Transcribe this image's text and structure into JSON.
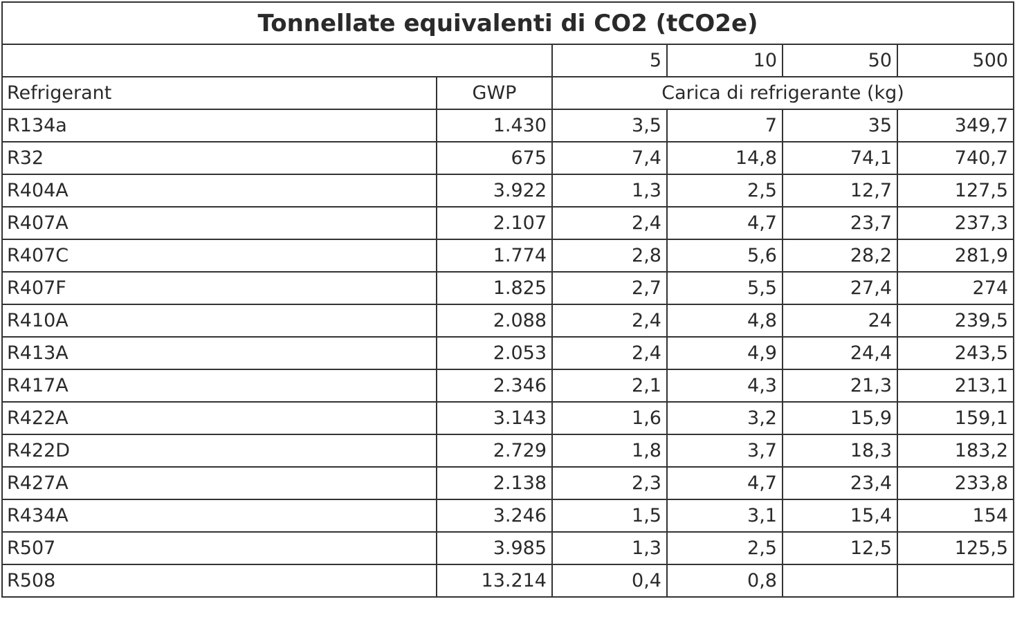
{
  "title": "Tonnellate equivalenti di CO2  (tCO2e)",
  "charges": [
    "5",
    "10",
    "50",
    "500"
  ],
  "header": {
    "refrigerant": "Refrigerant",
    "gwp": "GWP",
    "charge": "Carica di refrigerante (kg)"
  },
  "table": {
    "rows": [
      [
        "R134a",
        "1.430",
        "3,5",
        "7",
        "35",
        "349,7"
      ],
      [
        "R32",
        "675",
        "7,4",
        "14,8",
        "74,1",
        "740,7"
      ],
      [
        "R404A",
        "3.922",
        "1,3",
        "2,5",
        "12,7",
        "127,5"
      ],
      [
        "R407A",
        "2.107",
        "2,4",
        "4,7",
        "23,7",
        "237,3"
      ],
      [
        "R407C",
        "1.774",
        "2,8",
        "5,6",
        "28,2",
        "281,9"
      ],
      [
        "R407F",
        "1.825",
        "2,7",
        "5,5",
        "27,4",
        "274"
      ],
      [
        "R410A",
        "2.088",
        "2,4",
        "4,8",
        "24",
        "239,5"
      ],
      [
        "R413A",
        "2.053",
        "2,4",
        "4,9",
        "24,4",
        "243,5"
      ],
      [
        "R417A",
        "2.346",
        "2,1",
        "4,3",
        "21,3",
        "213,1"
      ],
      [
        "R422A",
        "3.143",
        "1,6",
        "3,2",
        "15,9",
        "159,1"
      ],
      [
        "R422D",
        "2.729",
        "1,8",
        "3,7",
        "18,3",
        "183,2"
      ],
      [
        "R427A",
        "2.138",
        "2,3",
        "4,7",
        "23,4",
        "233,8"
      ],
      [
        "R434A",
        "3.246",
        "1,5",
        "3,1",
        "15,4",
        "154"
      ],
      [
        "R507",
        "3.985",
        "1,3",
        "2,5",
        "12,5",
        "125,5"
      ],
      [
        "R508",
        "13.214",
        "0,4",
        "0,8",
        null,
        null
      ]
    ]
  }
}
